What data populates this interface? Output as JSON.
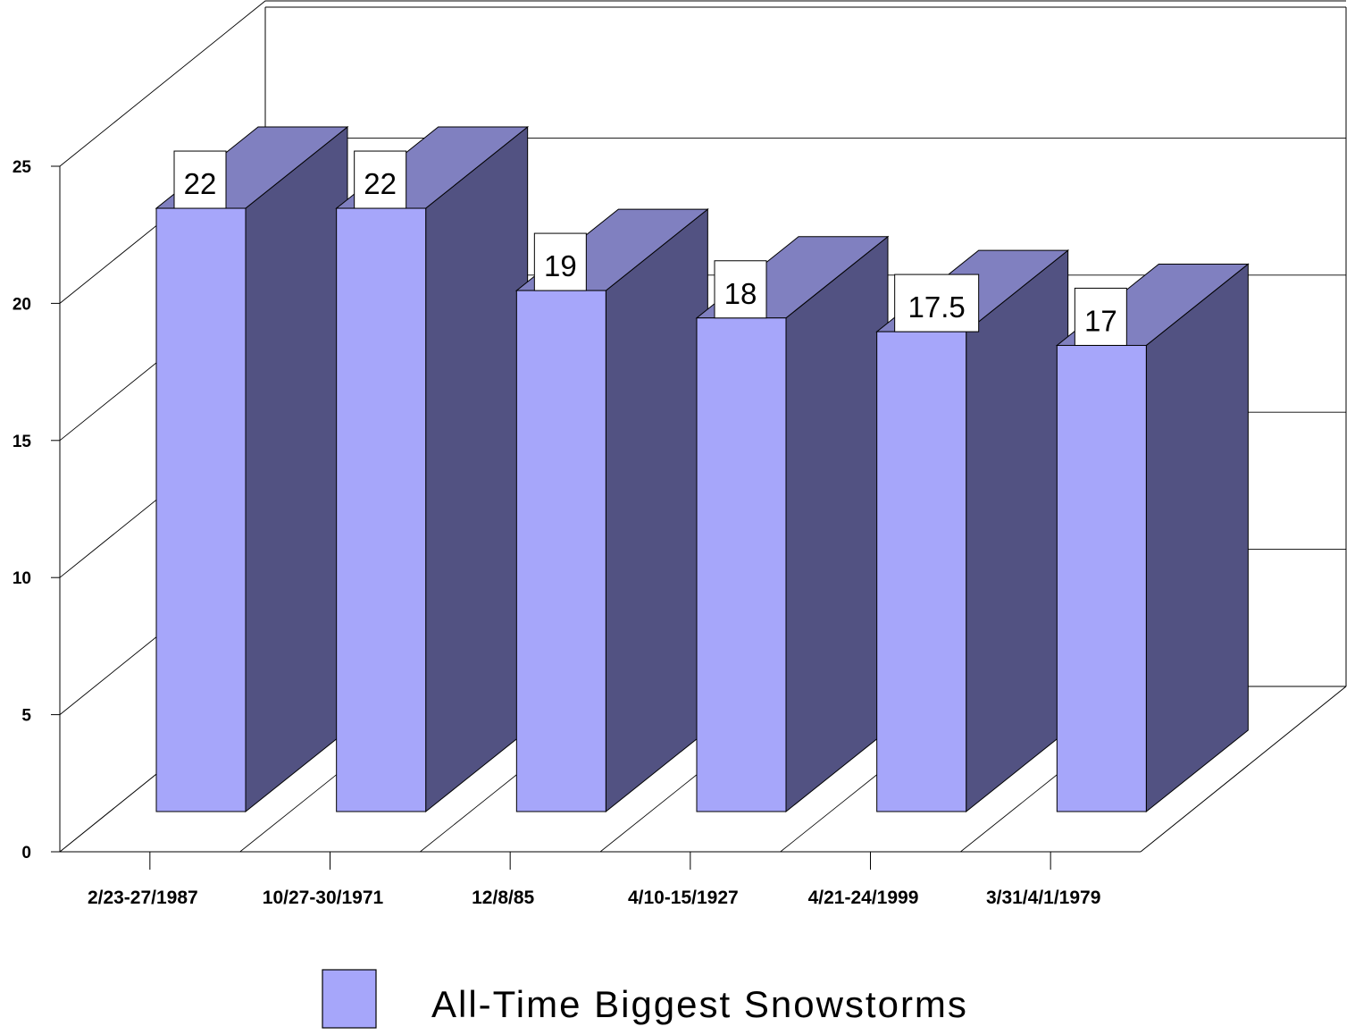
{
  "chart_data": {
    "type": "bar",
    "categories": [
      "2/23-27/1987",
      "10/27-30/1971",
      "12/8/85",
      "4/10-15/1927",
      "4/21-24/1999",
      "3/31/4/1/1979"
    ],
    "series": [
      {
        "name": "All-Time Biggest Snowstorms",
        "values": [
          22,
          22,
          19,
          18,
          17.5,
          17
        ],
        "labels": [
          "22",
          "22",
          "19",
          "18",
          "17.5",
          "17"
        ]
      }
    ],
    "y_ticks": [
      "0",
      "5",
      "10",
      "15",
      "20",
      "25"
    ],
    "ylim": [
      0,
      25
    ],
    "grid": true,
    "legend_position": "bottom",
    "colors": {
      "bar_front": "#a6a6fa",
      "bar_top": "#8080c0",
      "bar_side": "#525282",
      "outline": "#000000"
    }
  }
}
